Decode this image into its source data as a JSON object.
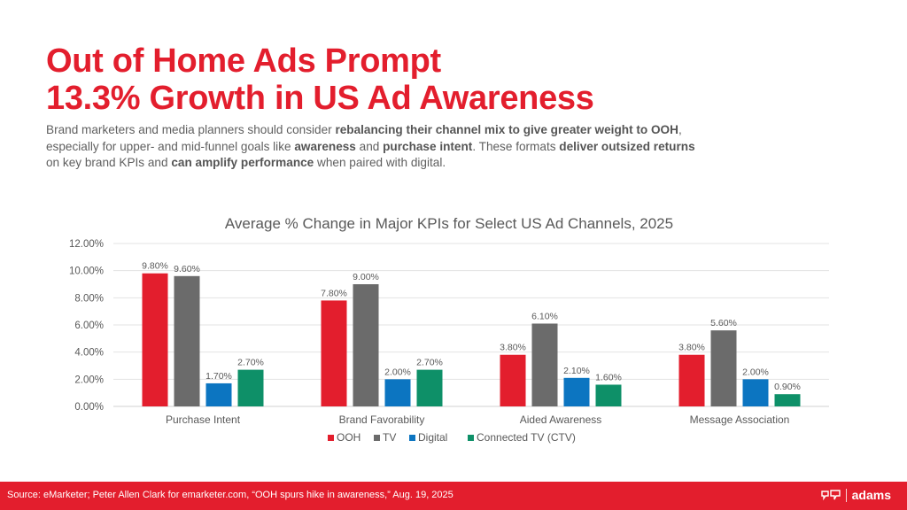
{
  "slide": {
    "title_line1": "Out of Home Ads Prompt",
    "title_line2": "13.3% Growth in US Ad Awareness",
    "subtitle_parts": [
      {
        "text": "Brand marketers and media planners should consider ",
        "bold": false
      },
      {
        "text": "rebalancing their channel mix to give greater weight to OOH",
        "bold": true
      },
      {
        "text": ", especially for upper- and mid-funnel goals like ",
        "bold": false
      },
      {
        "text": "awareness",
        "bold": true
      },
      {
        "text": " and ",
        "bold": false
      },
      {
        "text": "purchase intent",
        "bold": true
      },
      {
        "text": ". These formats ",
        "bold": false
      },
      {
        "text": "deliver outsized returns",
        "bold": true
      },
      {
        "text": " on key brand KPIs and ",
        "bold": false
      },
      {
        "text": "can amplify performance",
        "bold": true
      },
      {
        "text": " when paired with digital.",
        "bold": false
      }
    ],
    "source": "Source: eMarketer; Peter Allen Clark for emarketer.com, “OOH spurs hike in awareness,” Aug. 19, 2025",
    "logo_text": "adams",
    "logo_icon": "adams-mark-icon",
    "brand_color": "#e31e2d"
  },
  "chart_data": {
    "type": "bar",
    "title": "Average % Change in Major KPIs for Select US Ad Channels, 2025",
    "xlabel": "",
    "ylabel": "",
    "categories": [
      "Purchase Intent",
      "Brand Favorability",
      "Aided Awareness",
      "Message Association"
    ],
    "series": [
      {
        "name": "OOH",
        "color": "#e31e2d",
        "values": [
          9.8,
          7.8,
          3.8,
          3.8
        ]
      },
      {
        "name": "TV",
        "color": "#6b6b6b",
        "values": [
          9.6,
          9.0,
          6.1,
          5.6
        ]
      },
      {
        "name": "Digital",
        "color": "#0c75c1",
        "values": [
          1.7,
          2.0,
          2.1,
          2.0
        ]
      },
      {
        "name": "Connected TV (CTV)",
        "color": "#0e9068",
        "values": [
          2.7,
          2.7,
          1.6,
          0.9
        ]
      }
    ],
    "ylim": [
      0,
      12
    ],
    "yticks": [
      "0.00%",
      "2.00%",
      "4.00%",
      "6.00%",
      "8.00%",
      "10.00%",
      "12.00%"
    ],
    "ytick_values": [
      0,
      2,
      4,
      6,
      8,
      10,
      12
    ],
    "value_format": "percent-2dp",
    "grid": true,
    "legend": "bottom",
    "data_labels": true
  }
}
